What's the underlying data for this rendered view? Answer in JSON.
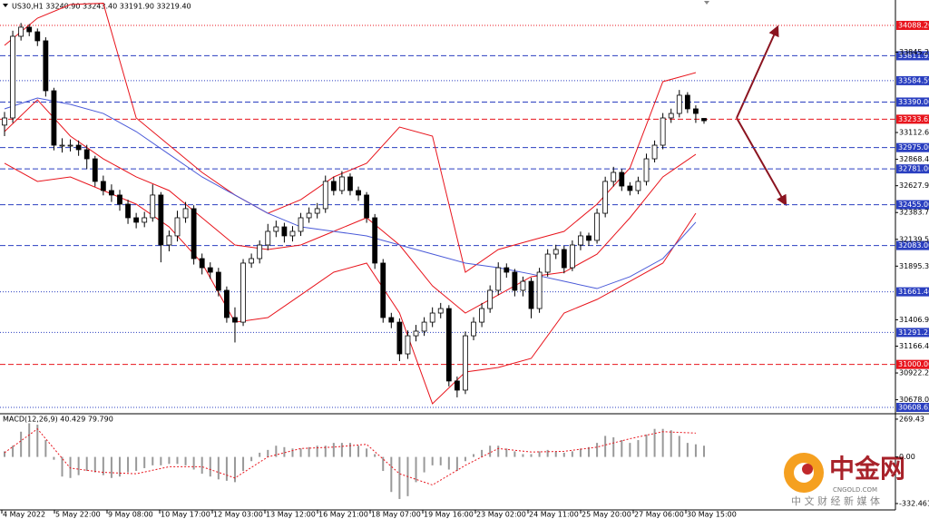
{
  "chart_data": {
    "type": "candlestick",
    "title": "US30,H1  33240.90 33243.40 33191.90 33219.40",
    "open": [
      33180,
      33245,
      33989,
      34072,
      34030,
      33948,
      33493,
      32997,
      32997,
      32997,
      32956,
      32873,
      32667,
      32584,
      32543,
      32460,
      32336,
      32295,
      32336,
      32543,
      32088,
      32171,
      32336,
      32419,
      31964,
      31881,
      31840,
      31675,
      31427,
      31385,
      31923,
      31964,
      32088,
      32212,
      32253,
      32171,
      32212,
      32336,
      32377,
      32419,
      32667,
      32584,
      32708,
      32584,
      32543,
      32336,
      31923,
      31427,
      31385,
      31096,
      31261,
      31303,
      31385,
      31468,
      31509,
      30849,
      30766,
      31261,
      31385,
      31509,
      31675,
      31881,
      31840,
      31675,
      31757,
      31509,
      31840,
      32005,
      32047,
      31881,
      32088,
      32171,
      32130,
      32377,
      32667,
      32749,
      32625,
      32584,
      32667,
      32873,
      32997,
      33245,
      33286,
      33452,
      33328,
      33240.9
    ],
    "high": [
      33300,
      34040,
      34110,
      34100,
      34060,
      33980,
      33520,
      33060,
      33050,
      33040,
      33000,
      32900,
      32720,
      32640,
      32590,
      32500,
      32380,
      32390,
      32640,
      32570,
      32220,
      32400,
      32480,
      32450,
      32010,
      31930,
      31880,
      31710,
      31520,
      31960,
      32010,
      32130,
      32280,
      32310,
      32290,
      32260,
      32380,
      32430,
      32470,
      32720,
      32710,
      32760,
      32740,
      32620,
      32570,
      32370,
      31960,
      31470,
      31420,
      31310,
      31360,
      31430,
      31520,
      31560,
      31540,
      30890,
      31300,
      31430,
      31560,
      31720,
      31930,
      31920,
      31870,
      31800,
      31790,
      31880,
      32050,
      32090,
      32080,
      32130,
      32210,
      32200,
      32420,
      32710,
      32800,
      32780,
      32660,
      32710,
      32920,
      33040,
      33290,
      33330,
      33500,
      33480,
      33360,
      33243.4
    ],
    "low": [
      33080,
      33200,
      33950,
      33990,
      33900,
      33440,
      32950,
      32930,
      32940,
      32900,
      32780,
      32620,
      32540,
      32480,
      32400,
      32280,
      32240,
      32250,
      32300,
      31930,
      32030,
      32120,
      32290,
      31910,
      31820,
      31780,
      31620,
      31380,
      31200,
      31350,
      31880,
      31920,
      32040,
      32160,
      32110,
      32120,
      32170,
      32290,
      32330,
      32380,
      32540,
      32550,
      32540,
      32490,
      32290,
      31870,
      31380,
      31330,
      31030,
      31050,
      31210,
      31260,
      31340,
      31420,
      30800,
      30700,
      30730,
      31220,
      31340,
      31470,
      31630,
      31790,
      31620,
      31620,
      31420,
      31470,
      31800,
      31960,
      31830,
      31850,
      32040,
      32080,
      32100,
      32340,
      32620,
      32580,
      32540,
      32550,
      32630,
      32840,
      32960,
      33200,
      33250,
      33290,
      33200,
      33191.9
    ],
    "close": [
      33245,
      33989,
      34072,
      34030,
      33948,
      33493,
      32997,
      32997,
      32997,
      32956,
      32873,
      32667,
      32584,
      32543,
      32460,
      32336,
      32295,
      32336,
      32543,
      32088,
      32171,
      32336,
      32419,
      31964,
      31881,
      31840,
      31675,
      31427,
      31385,
      31923,
      31964,
      32088,
      32212,
      32253,
      32171,
      32212,
      32336,
      32377,
      32419,
      32667,
      32584,
      32708,
      32584,
      32543,
      32336,
      31923,
      31427,
      31385,
      31096,
      31261,
      31303,
      31385,
      31468,
      31509,
      30849,
      30766,
      31261,
      31385,
      31509,
      31675,
      31881,
      31840,
      31675,
      31757,
      31509,
      31840,
      32005,
      32047,
      31881,
      32088,
      32171,
      32130,
      32377,
      32667,
      32749,
      32625,
      32584,
      32667,
      32873,
      32997,
      33245,
      33286,
      33452,
      33328,
      33286,
      33219.4
    ],
    "bands": {
      "x": [
        0,
        4,
        8,
        12,
        16,
        20,
        24,
        28,
        32,
        36,
        40,
        44,
        48,
        52,
        56,
        60,
        64,
        68,
        72,
        76,
        80,
        84
      ],
      "upper": [
        33906,
        34154,
        34278,
        34290,
        33245,
        32997,
        32749,
        32543,
        32377,
        32501,
        32708,
        32832,
        33162,
        33080,
        31840,
        32047,
        32130,
        32212,
        32460,
        32790,
        33576,
        33658
      ],
      "middle": [
        33121,
        33410,
        33080,
        32873,
        32708,
        32584,
        32336,
        32088,
        32047,
        32088,
        32212,
        32336,
        32088,
        31716,
        31468,
        31633,
        31799,
        31840,
        32005,
        32336,
        32708,
        32914
      ],
      "lower": [
        32832,
        32667,
        32708,
        32584,
        32460,
        32253,
        31923,
        31385,
        31427,
        31633,
        31840,
        31923,
        31468,
        30642,
        30931,
        30972,
        31055,
        31468,
        31592,
        31757,
        31923,
        32377
      ],
      "color": "#e8141c"
    },
    "ma": {
      "x": [
        0,
        4,
        8,
        12,
        16,
        20,
        24,
        28,
        32,
        36,
        40,
        44,
        48,
        52,
        56,
        60,
        64,
        68,
        72,
        76,
        80,
        84
      ],
      "values": [
        33328,
        33427,
        33369,
        33286,
        33121,
        32914,
        32708,
        32543,
        32377,
        32253,
        32212,
        32171,
        32088,
        32005,
        31923,
        31881,
        31823,
        31757,
        31691,
        31799,
        31964,
        32295
      ],
      "color": "#4a5ad8"
    },
    "ylim": [
      30559,
      34303
    ],
    "yticks": [
      33845.25,
      {
        "value": 33112.6,
        "label": "33112.60"
      },
      {
        "value": 32868.4,
        "label": "32868.40"
      },
      {
        "value": 32627.9,
        "label": "32627.90"
      },
      {
        "value": 32383.7,
        "label": "32383.70"
      },
      {
        "value": 32139.5,
        "label": "32139.50"
      },
      {
        "value": 31895.3,
        "label": "31895.30"
      },
      {
        "value": 31406.9,
        "label": "31406.90"
      },
      {
        "value": 31166.4,
        "label": "31166.40"
      },
      {
        "value": 30922.2,
        "label": "30922.20"
      },
      {
        "value": 30678,
        "label": "30678.00"
      }
    ],
    "levels": [
      {
        "value": 34088.2,
        "label": "34088.20",
        "color": "#e8141c",
        "style": "dotted"
      },
      {
        "value": 33811.92,
        "color": "#2a3fc0",
        "style": "dashed"
      },
      {
        "value": 33584.59,
        "color": "#2a3fc0",
        "style": "dotted"
      },
      {
        "value": 33390,
        "label": "33390.00",
        "color": "#2a3fc0",
        "style": "dashed"
      },
      {
        "value": 33233.63,
        "color": "#e8141c",
        "style": "dashed"
      },
      {
        "value": 32975,
        "label": "32975.00",
        "color": "#2a3fc0",
        "style": "dashed"
      },
      {
        "value": 32781,
        "label": "32781.00",
        "color": "#2a3fc0",
        "style": "dashed"
      },
      {
        "value": 32455,
        "label": "32455.00",
        "color": "#2a3fc0",
        "style": "dashed"
      },
      {
        "value": 32083,
        "label": "32083.00",
        "color": "#2a3fc0",
        "style": "dashed"
      },
      {
        "value": 31661.46,
        "color": "#2a3fc0",
        "style": "dotted"
      },
      {
        "value": 31291.23,
        "color": "#2a3fc0",
        "style": "dotted"
      },
      {
        "value": 31000,
        "label": "31000.00",
        "color": "#e8141c",
        "style": "dashed"
      },
      {
        "value": 30608.62,
        "color": "#2a3fc0",
        "style": "dotted"
      }
    ],
    "x_labels": [
      "4 May 2022",
      "5 May 22:00",
      "9 May 08:00",
      "10 May 17:00",
      "12 May 03:00",
      "13 May 12:00",
      "16 May 21:00",
      "18 May 07:00",
      "19 May 16:00",
      "23 May 02:00",
      "24 May 11:00",
      "25 May 20:00",
      "27 May 06:00",
      "30 May 15:00"
    ],
    "macd": {
      "label": "MACD(12,26,9) 40.429 79.790",
      "values": [
        40,
        80,
        180,
        240,
        230,
        120,
        -20,
        -140,
        -150,
        -130,
        -100,
        -110,
        -130,
        -150,
        -140,
        -110,
        -100,
        -80,
        -60,
        -60,
        -50,
        -50,
        -60,
        -90,
        -120,
        -140,
        -160,
        -170,
        -180,
        -100,
        -30,
        30,
        50,
        80,
        70,
        60,
        60,
        70,
        80,
        80,
        100,
        100,
        100,
        80,
        60,
        20,
        -100,
        -250,
        -300,
        -280,
        -180,
        -110,
        -60,
        -60,
        -90,
        -100,
        -30,
        20,
        50,
        80,
        80,
        60,
        40,
        20,
        20,
        40,
        50,
        40,
        30,
        40,
        60,
        70,
        100,
        150,
        140,
        120,
        100,
        120,
        160,
        200,
        200,
        190,
        150,
        100,
        90,
        80
      ],
      "signal_x": [
        0,
        4,
        8,
        12,
        16,
        20,
        24,
        28,
        32,
        36,
        40,
        44,
        48,
        52,
        56,
        60,
        64,
        68,
        72,
        76,
        80,
        84
      ],
      "signal": [
        30,
        200,
        -80,
        -110,
        -120,
        -70,
        -70,
        -150,
        0,
        60,
        70,
        90,
        -120,
        -200,
        -60,
        60,
        35,
        40,
        70,
        130,
        180,
        170
      ],
      "color": "#999999",
      "signal_color": "#e8141c",
      "ylim": [
        -378,
        295
      ],
      "yticks": [
        269.43,
        {
          "value": 0,
          "label": "0.00"
        },
        -332.461
      ]
    },
    "watermark": {
      "name": "中金网",
      "site": "CNGOLD.COM",
      "slogan": "中 文 财 经 新 媒 体"
    }
  }
}
